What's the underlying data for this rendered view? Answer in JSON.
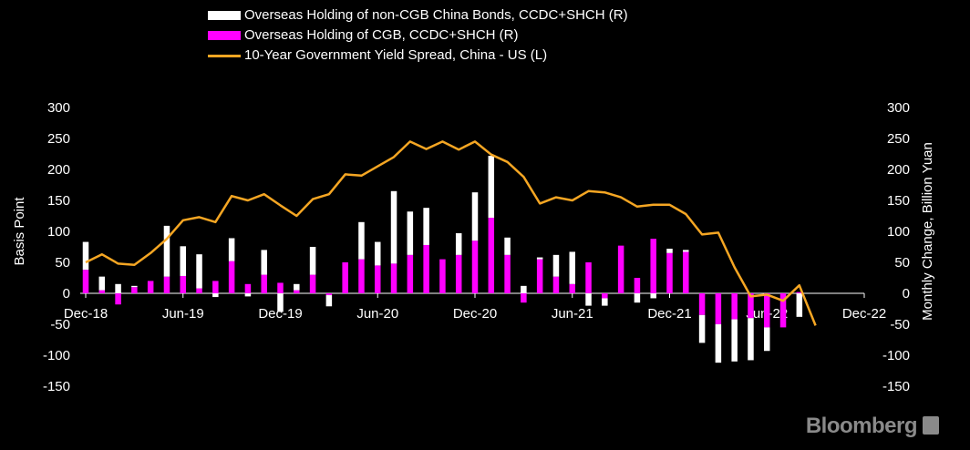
{
  "chart_data": {
    "type": "bar+line",
    "legend": [
      {
        "label": "Overseas Holding of non-CGB China Bonds, CCDC+SHCH (R)",
        "color": "#ffffff",
        "kind": "bar"
      },
      {
        "label": "Overseas Holding of CGB, CCDC+SHCH (R)",
        "color": "#ff00ff",
        "kind": "bar"
      },
      {
        "label": "10-Year Government Yield Spread, China - US (L)",
        "color": "#f5a623",
        "kind": "line"
      }
    ],
    "legend_placement": "top",
    "ylabel_left": "Basis Point",
    "ylabel_right": "Monthly Change, Billion Yuan",
    "ylim_left": [
      -150,
      300
    ],
    "ylim_right": [
      -150,
      300
    ],
    "yticks": [
      300,
      250,
      200,
      150,
      100,
      50,
      0,
      -50,
      -100,
      -150
    ],
    "x_tick_labels": [
      "Dec-18",
      "Jun-19",
      "Dec-19",
      "Jun-20",
      "Dec-20",
      "Jun-21",
      "Dec-21",
      "Jun-22",
      "Dec-22"
    ],
    "x_tick_index": [
      0,
      6,
      12,
      18,
      24,
      30,
      36,
      42,
      48
    ],
    "x_count": 49,
    "series_cgb": [
      38,
      5,
      -18,
      10,
      20,
      27,
      28,
      8,
      20,
      52,
      15,
      30,
      17,
      5,
      30,
      -3,
      50,
      55,
      45,
      48,
      62,
      78,
      55,
      62,
      85,
      122,
      62,
      -15,
      55,
      27,
      15,
      50,
      -8,
      77,
      25,
      88,
      65,
      67,
      -35,
      -50,
      -42,
      -40,
      -55,
      -55,
      2,
      null,
      null,
      null,
      null
    ],
    "series_non_cgb": [
      45,
      22,
      15,
      2,
      0,
      82,
      48,
      55,
      -6,
      37,
      -5,
      40,
      -30,
      10,
      45,
      -18,
      0,
      60,
      38,
      117,
      70,
      60,
      0,
      35,
      78,
      100,
      28,
      12,
      3,
      35,
      52,
      -20,
      -12,
      0,
      -15,
      -8,
      7,
      3,
      -45,
      -62,
      -68,
      -68,
      -38,
      0,
      -38,
      null,
      null,
      null,
      null
    ],
    "series_spread": [
      50,
      63,
      48,
      46,
      65,
      88,
      118,
      123,
      115,
      157,
      150,
      160,
      142,
      125,
      152,
      160,
      192,
      190,
      205,
      220,
      245,
      233,
      245,
      232,
      245,
      224,
      212,
      188,
      145,
      155,
      150,
      165,
      163,
      155,
      140,
      143,
      143,
      128,
      95,
      98,
      42,
      -5,
      -2,
      -12,
      13,
      -52,
      null,
      null,
      null
    ]
  },
  "watermark": "Bloomberg",
  "colors": {
    "background": "#000000",
    "axis": "#ffffff",
    "cgb": "#ff00ff",
    "non_cgb": "#ffffff",
    "spread": "#f5a623"
  }
}
